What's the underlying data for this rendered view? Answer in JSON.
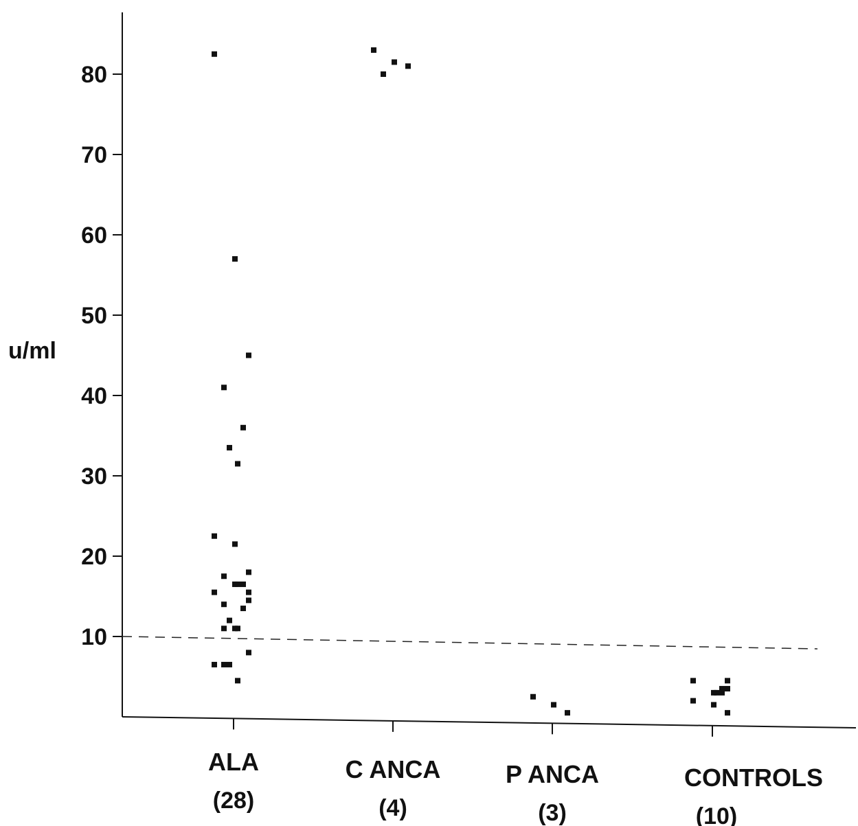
{
  "chart_data": {
    "type": "scatter",
    "ylabel": "u/ml",
    "ylim": [
      0,
      86
    ],
    "yticks": [
      "80",
      "70",
      "60",
      "50",
      "40",
      "30",
      "20",
      "10"
    ],
    "yticks_values": [
      80,
      70,
      60,
      50,
      40,
      30,
      20,
      10
    ],
    "threshold": 10,
    "categories": [
      {
        "name": "ALA",
        "count": "(28)"
      },
      {
        "name": "C ANCA",
        "count": "(4)"
      },
      {
        "name": "P ANCA",
        "count": "(3)"
      },
      {
        "name": "CONTROLS",
        "count": "(10)"
      }
    ],
    "series": [
      {
        "category": "ALA",
        "values": [
          82.5,
          57,
          45,
          41,
          36,
          33.5,
          31.5,
          22.5,
          21.5,
          18,
          17.5,
          16.5,
          16.5,
          16.5,
          15.5,
          15.5,
          14.5,
          14,
          13.5,
          12,
          11,
          11,
          11,
          8,
          6.5,
          6.5,
          6.5,
          4.5
        ]
      },
      {
        "category": "C ANCA",
        "values": [
          83,
          81.5,
          81,
          80
        ]
      },
      {
        "category": "P ANCA",
        "values": [
          2.5,
          1.5,
          0.5
        ]
      },
      {
        "category": "CONTROLS",
        "values": [
          4.5,
          4.5,
          3.5,
          3.5,
          3,
          3,
          3,
          2,
          1.5,
          0.5
        ]
      }
    ]
  }
}
